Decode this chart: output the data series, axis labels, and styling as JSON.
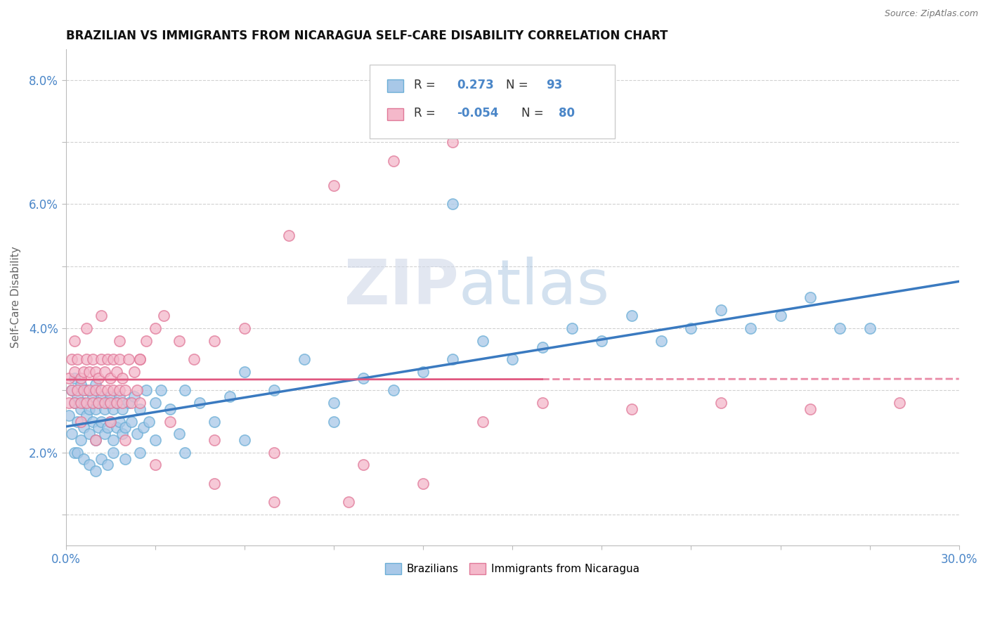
{
  "title": "BRAZILIAN VS IMMIGRANTS FROM NICARAGUA SELF-CARE DISABILITY CORRELATION CHART",
  "source": "Source: ZipAtlas.com",
  "ylabel": "Self-Care Disability",
  "xlim": [
    0.0,
    0.3
  ],
  "ylim": [
    0.005,
    0.085
  ],
  "yticks": [
    0.01,
    0.02,
    0.03,
    0.04,
    0.05,
    0.06,
    0.07,
    0.08
  ],
  "yticklabels": [
    "",
    "2.0%",
    "",
    "4.0%",
    "",
    "6.0%",
    "",
    "8.0%"
  ],
  "legend_r1": "0.273",
  "legend_n1": "93",
  "legend_r2": "-0.054",
  "legend_n2": "80",
  "color_blue": "#a8c8e8",
  "color_blue_edge": "#6baed6",
  "color_pink": "#f4b8ca",
  "color_pink_edge": "#e07898",
  "color_blue_line": "#3a7ac0",
  "color_pink_line": "#e05880",
  "watermark_zip": "ZIP",
  "watermark_atlas": "atlas",
  "background_color": "#ffffff",
  "grid_color": "#cccccc",
  "blue_scatter_x": [
    0.001,
    0.002,
    0.002,
    0.003,
    0.003,
    0.003,
    0.004,
    0.004,
    0.005,
    0.005,
    0.005,
    0.006,
    0.006,
    0.007,
    0.007,
    0.008,
    0.008,
    0.009,
    0.009,
    0.01,
    0.01,
    0.01,
    0.011,
    0.011,
    0.012,
    0.012,
    0.013,
    0.013,
    0.014,
    0.014,
    0.015,
    0.015,
    0.016,
    0.016,
    0.017,
    0.017,
    0.018,
    0.018,
    0.019,
    0.019,
    0.02,
    0.021,
    0.022,
    0.023,
    0.024,
    0.025,
    0.026,
    0.027,
    0.028,
    0.03,
    0.032,
    0.035,
    0.038,
    0.04,
    0.045,
    0.05,
    0.055,
    0.06,
    0.07,
    0.08,
    0.09,
    0.1,
    0.11,
    0.12,
    0.13,
    0.14,
    0.15,
    0.16,
    0.17,
    0.18,
    0.19,
    0.2,
    0.21,
    0.22,
    0.23,
    0.24,
    0.25,
    0.26,
    0.27,
    0.004,
    0.006,
    0.008,
    0.01,
    0.012,
    0.014,
    0.016,
    0.02,
    0.025,
    0.03,
    0.04,
    0.06,
    0.09,
    0.13
  ],
  "blue_scatter_y": [
    0.026,
    0.03,
    0.023,
    0.028,
    0.032,
    0.02,
    0.025,
    0.029,
    0.027,
    0.022,
    0.031,
    0.024,
    0.028,
    0.026,
    0.03,
    0.023,
    0.027,
    0.025,
    0.029,
    0.022,
    0.027,
    0.031,
    0.024,
    0.028,
    0.025,
    0.029,
    0.023,
    0.027,
    0.024,
    0.028,
    0.025,
    0.029,
    0.022,
    0.027,
    0.024,
    0.028,
    0.025,
    0.029,
    0.023,
    0.027,
    0.024,
    0.028,
    0.025,
    0.029,
    0.023,
    0.027,
    0.024,
    0.03,
    0.025,
    0.028,
    0.03,
    0.027,
    0.023,
    0.03,
    0.028,
    0.025,
    0.029,
    0.033,
    0.03,
    0.035,
    0.028,
    0.032,
    0.03,
    0.033,
    0.035,
    0.038,
    0.035,
    0.037,
    0.04,
    0.038,
    0.042,
    0.038,
    0.04,
    0.043,
    0.04,
    0.042,
    0.045,
    0.04,
    0.04,
    0.02,
    0.019,
    0.018,
    0.017,
    0.019,
    0.018,
    0.02,
    0.019,
    0.02,
    0.022,
    0.02,
    0.022,
    0.025,
    0.06
  ],
  "pink_scatter_x": [
    0.001,
    0.001,
    0.002,
    0.002,
    0.003,
    0.003,
    0.004,
    0.004,
    0.005,
    0.005,
    0.006,
    0.006,
    0.007,
    0.007,
    0.008,
    0.008,
    0.009,
    0.009,
    0.01,
    0.01,
    0.011,
    0.011,
    0.012,
    0.012,
    0.013,
    0.013,
    0.014,
    0.014,
    0.015,
    0.015,
    0.016,
    0.016,
    0.017,
    0.017,
    0.018,
    0.018,
    0.019,
    0.019,
    0.02,
    0.021,
    0.022,
    0.023,
    0.024,
    0.025,
    0.027,
    0.03,
    0.033,
    0.038,
    0.043,
    0.05,
    0.06,
    0.075,
    0.09,
    0.11,
    0.13,
    0.005,
    0.01,
    0.015,
    0.02,
    0.025,
    0.035,
    0.05,
    0.07,
    0.1,
    0.003,
    0.007,
    0.012,
    0.018,
    0.025,
    0.16,
    0.19,
    0.22,
    0.25,
    0.28,
    0.14,
    0.12,
    0.095,
    0.07,
    0.05,
    0.03
  ],
  "pink_scatter_y": [
    0.032,
    0.028,
    0.03,
    0.035,
    0.028,
    0.033,
    0.03,
    0.035,
    0.028,
    0.032,
    0.03,
    0.033,
    0.028,
    0.035,
    0.03,
    0.033,
    0.028,
    0.035,
    0.03,
    0.033,
    0.028,
    0.032,
    0.03,
    0.035,
    0.028,
    0.033,
    0.03,
    0.035,
    0.028,
    0.032,
    0.03,
    0.035,
    0.028,
    0.033,
    0.03,
    0.035,
    0.028,
    0.032,
    0.03,
    0.035,
    0.028,
    0.033,
    0.03,
    0.035,
    0.038,
    0.04,
    0.042,
    0.038,
    0.035,
    0.038,
    0.04,
    0.055,
    0.063,
    0.067,
    0.07,
    0.025,
    0.022,
    0.025,
    0.022,
    0.028,
    0.025,
    0.022,
    0.02,
    0.018,
    0.038,
    0.04,
    0.042,
    0.038,
    0.035,
    0.028,
    0.027,
    0.028,
    0.027,
    0.028,
    0.025,
    0.015,
    0.012,
    0.012,
    0.015,
    0.018
  ]
}
